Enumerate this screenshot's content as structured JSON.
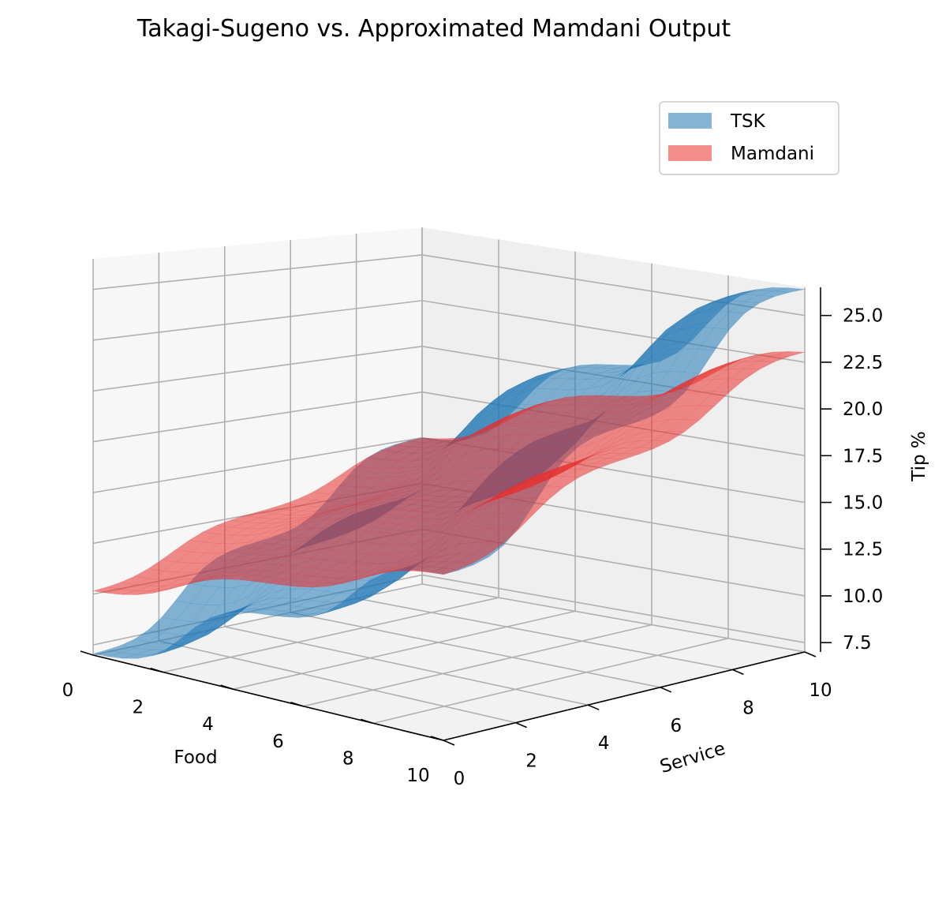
{
  "chart_data": {
    "type": "surface3d",
    "title": "Takagi-Sugeno vs. Approximated Mamdani Output",
    "xlabel": "Food",
    "ylabel": "Service",
    "zlabel": "Tip %",
    "x_ticks": [
      0,
      2,
      4,
      6,
      8,
      10
    ],
    "y_ticks": [
      0,
      2,
      4,
      6,
      8,
      10
    ],
    "z_ticks": [
      "7.5",
      "10.0",
      "12.5",
      "15.0",
      "17.5",
      "20.0",
      "22.5",
      "25.0"
    ],
    "xlim": [
      0,
      10
    ],
    "ylim": [
      0,
      10
    ],
    "zlim": [
      7.0,
      26.5
    ],
    "grid": true,
    "legend_position": "top-right",
    "series": [
      {
        "name": "TSK",
        "color": "#1f77b4",
        "levels": {
          "low": 7.0,
          "mid": 15.0,
          "high": 26.5
        },
        "step_centers": {
          "x": 2.6,
          "y": 2.6
        },
        "transition_width": 0.55
      },
      {
        "name": "Mamdani",
        "color": "#e8302e",
        "levels": {
          "low": 10.0,
          "mid": 15.0,
          "high": 23.3
        },
        "step_centers": {
          "x": 2.4,
          "y": 2.4
        },
        "transition_width": 0.7
      }
    ]
  }
}
